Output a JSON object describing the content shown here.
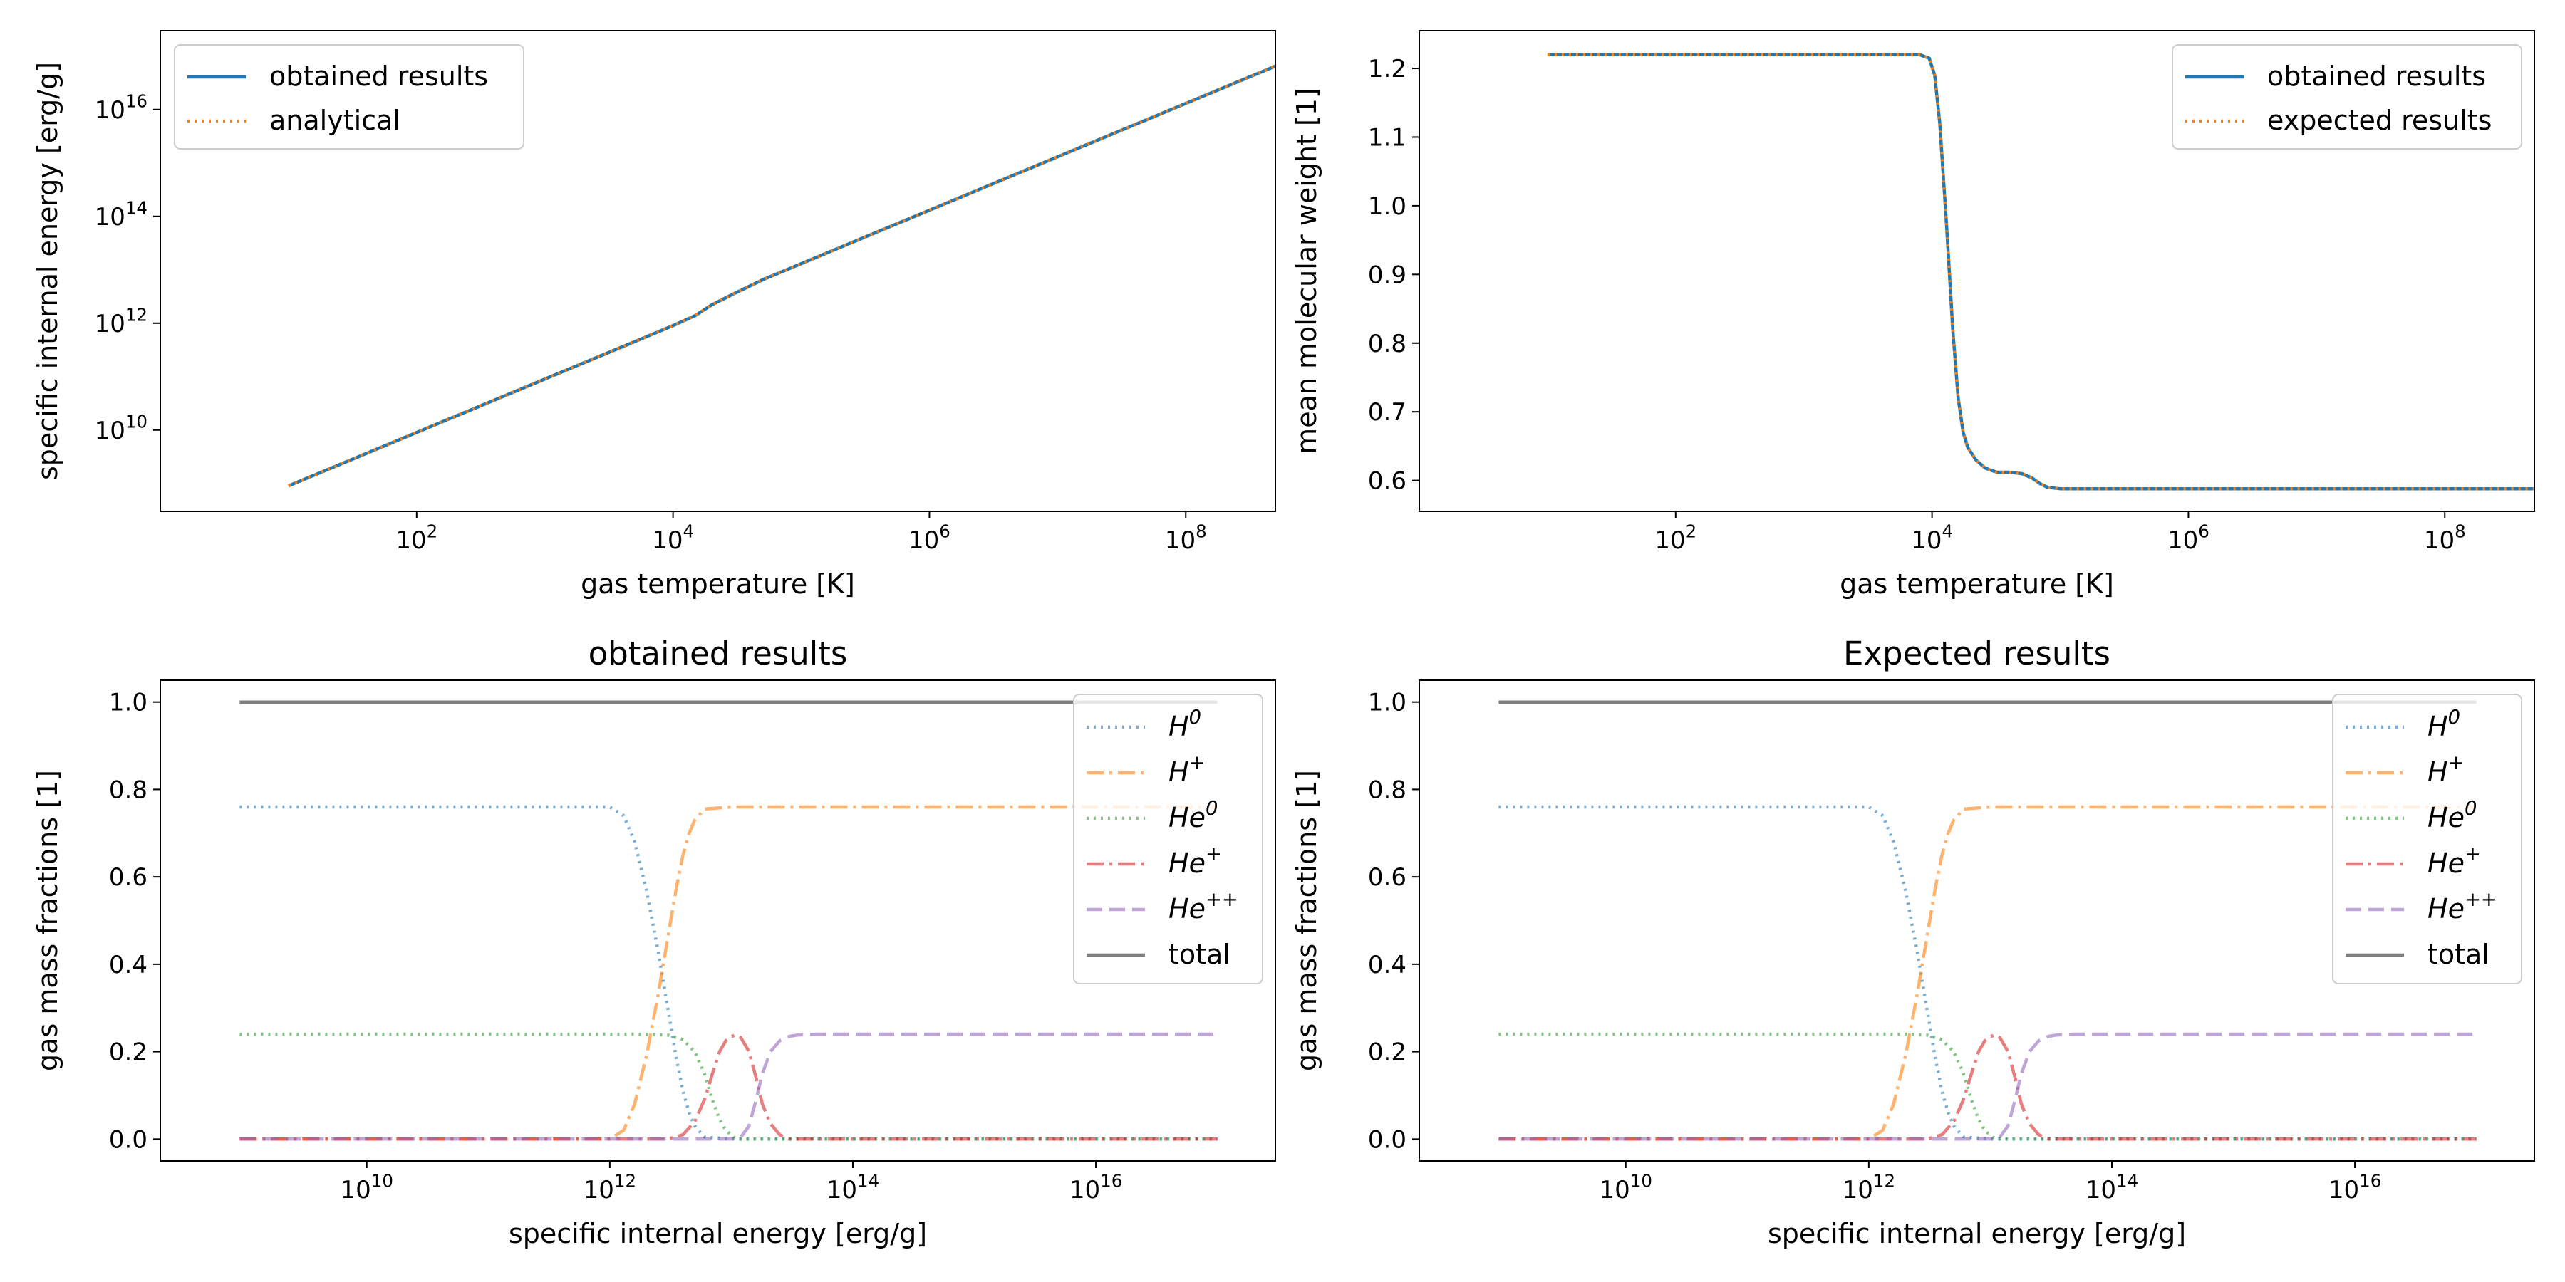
{
  "colors": {
    "blue": "#1f77b4",
    "orange": "#ff7f0e",
    "green": "#2ca02c",
    "red": "#d62728",
    "purple": "#9467bd",
    "gray": "#7f7f7f"
  },
  "chart_data": [
    {
      "type": "line",
      "title": "",
      "xlabel": "gas temperature [K]",
      "ylabel": "specific internal energy [erg/g]",
      "xscale": "log",
      "yscale": "log",
      "xlim": [
        1.0,
        500000000.0
      ],
      "ylim": [
        300000000.0,
        3e+17
      ],
      "xticks": [
        {
          "v": 100,
          "base": "10",
          "exp": "2"
        },
        {
          "v": 10000,
          "base": "10",
          "exp": "4"
        },
        {
          "v": 1000000,
          "base": "10",
          "exp": "6"
        },
        {
          "v": 100000000,
          "base": "10",
          "exp": "8"
        }
      ],
      "yticks": [
        {
          "v": 10000000000.0,
          "base": "10",
          "exp": "10"
        },
        {
          "v": 1000000000000.0,
          "base": "10",
          "exp": "12"
        },
        {
          "v": 100000000000000.0,
          "base": "10",
          "exp": "14"
        },
        {
          "v": 1e+16,
          "base": "10",
          "exp": "16"
        }
      ],
      "legend": "top-left",
      "series": [
        {
          "name": "obtained results",
          "color": "blue",
          "style": "solid",
          "x": [
            10,
            100,
            1000,
            5000,
            10000,
            15000,
            20000,
            30000,
            50000,
            100000,
            1000000,
            10000000,
            100000000,
            500000000
          ],
          "y": [
            900000000.0,
            9000000000.0,
            90000000000.0,
            450000000000.0,
            900000000000.0,
            1400000000000.0,
            2200000000000.0,
            3600000000000.0,
            6500000000000.0,
            13000000000000.0,
            130000000000000.0,
            1300000000000000.0,
            1.3e+16,
            6.5e+16
          ]
        },
        {
          "name": "analytical",
          "color": "orange",
          "style": "dotted",
          "x": [
            10,
            100,
            1000,
            5000,
            10000,
            15000,
            20000,
            30000,
            50000,
            100000,
            1000000,
            10000000,
            100000000,
            500000000
          ],
          "y": [
            900000000.0,
            9000000000.0,
            90000000000.0,
            450000000000.0,
            900000000000.0,
            1400000000000.0,
            2200000000000.0,
            3600000000000.0,
            6500000000000.0,
            13000000000000.0,
            130000000000000.0,
            1300000000000000.0,
            1.3e+16,
            6.5e+16
          ]
        }
      ]
    },
    {
      "type": "line",
      "title": "",
      "xlabel": "gas temperature [K]",
      "ylabel": "mean molecular weight [1]",
      "xscale": "log",
      "yscale": "linear",
      "xlim": [
        1.0,
        500000000.0
      ],
      "ylim": [
        0.555,
        1.255
      ],
      "xticks": [
        {
          "v": 100,
          "base": "10",
          "exp": "2"
        },
        {
          "v": 10000,
          "base": "10",
          "exp": "4"
        },
        {
          "v": 1000000,
          "base": "10",
          "exp": "6"
        },
        {
          "v": 100000000,
          "base": "10",
          "exp": "8"
        }
      ],
      "yticks": [
        {
          "v": 0.6,
          "label": "0.6"
        },
        {
          "v": 0.7,
          "label": "0.7"
        },
        {
          "v": 0.8,
          "label": "0.8"
        },
        {
          "v": 0.9,
          "label": "0.9"
        },
        {
          "v": 1.0,
          "label": "1.0"
        },
        {
          "v": 1.1,
          "label": "1.1"
        },
        {
          "v": 1.2,
          "label": "1.2"
        }
      ],
      "legend": "top-right",
      "series": [
        {
          "name": "obtained results",
          "color": "blue",
          "style": "solid",
          "x": [
            10,
            1000,
            8000,
            9500,
            10500,
            11500,
            13000,
            14500,
            16000,
            17500,
            19000,
            22000,
            26000,
            32000,
            40000,
            50000,
            60000,
            70000,
            80000,
            100000,
            200000,
            1000000,
            100000000,
            500000000
          ],
          "y": [
            1.22,
            1.22,
            1.22,
            1.215,
            1.19,
            1.12,
            0.97,
            0.82,
            0.72,
            0.67,
            0.648,
            0.63,
            0.618,
            0.612,
            0.612,
            0.61,
            0.604,
            0.595,
            0.59,
            0.588,
            0.588,
            0.588,
            0.588,
            0.588
          ]
        },
        {
          "name": "expected results",
          "color": "orange",
          "style": "dotted",
          "x": [
            10,
            1000,
            8000,
            9500,
            10500,
            11500,
            13000,
            14500,
            16000,
            17500,
            19000,
            22000,
            26000,
            32000,
            40000,
            50000,
            60000,
            70000,
            80000,
            100000,
            200000,
            1000000,
            100000000,
            500000000
          ],
          "y": [
            1.22,
            1.22,
            1.22,
            1.215,
            1.19,
            1.12,
            0.97,
            0.82,
            0.72,
            0.67,
            0.648,
            0.63,
            0.618,
            0.612,
            0.612,
            0.61,
            0.604,
            0.595,
            0.59,
            0.588,
            0.588,
            0.588,
            0.588,
            0.588
          ]
        }
      ]
    },
    {
      "type": "line",
      "title": "obtained results",
      "xlabel": "specific internal energy [erg/g]",
      "ylabel": "gas mass fractions [1]",
      "xscale": "log",
      "yscale": "linear",
      "xlim": [
        200000000.0,
        3e+17
      ],
      "ylim": [
        -0.05,
        1.05
      ],
      "xticks": [
        {
          "v": 10000000000.0,
          "base": "10",
          "exp": "10"
        },
        {
          "v": 1000000000000.0,
          "base": "10",
          "exp": "12"
        },
        {
          "v": 100000000000000.0,
          "base": "10",
          "exp": "14"
        },
        {
          "v": 1e+16,
          "base": "10",
          "exp": "16"
        }
      ],
      "yticks": [
        {
          "v": 0.0,
          "label": "0.0"
        },
        {
          "v": 0.2,
          "label": "0.2"
        },
        {
          "v": 0.4,
          "label": "0.4"
        },
        {
          "v": 0.6,
          "label": "0.6"
        },
        {
          "v": 0.8,
          "label": "0.8"
        },
        {
          "v": 1.0,
          "label": "1.0"
        }
      ],
      "legend": "top-right",
      "series": [
        {
          "name": "H",
          "sup": "0",
          "color": "blue",
          "style": "dotted",
          "alpha": 0.6,
          "x": [
            900000000.0,
            100000000000.0,
            1000000000000.0,
            1300000000000.0,
            1600000000000.0,
            2000000000000.0,
            2500000000000.0,
            3000000000000.0,
            3500000000000.0,
            4000000000000.0,
            4500000000000.0,
            5000000000000.0,
            6000000000000.0,
            10000000000000.0,
            1e+17
          ],
          "y": [
            0.76,
            0.76,
            0.76,
            0.74,
            0.68,
            0.57,
            0.43,
            0.3,
            0.19,
            0.11,
            0.06,
            0.03,
            0.005,
            0.0,
            0.0
          ]
        },
        {
          "name": "H",
          "sup": "+",
          "color": "orange",
          "style": "dashdot",
          "alpha": 0.6,
          "x": [
            900000000.0,
            100000000000.0,
            1000000000000.0,
            1300000000000.0,
            1600000000000.0,
            2000000000000.0,
            2500000000000.0,
            3000000000000.0,
            3500000000000.0,
            4000000000000.0,
            4500000000000.0,
            5000000000000.0,
            6000000000000.0,
            10000000000000.0,
            1e+17
          ],
          "y": [
            0.0,
            0.0,
            0.0,
            0.02,
            0.08,
            0.19,
            0.33,
            0.46,
            0.57,
            0.65,
            0.7,
            0.73,
            0.755,
            0.76,
            0.76
          ]
        },
        {
          "name": "He",
          "sup": "0",
          "color": "green",
          "style": "dotted",
          "alpha": 0.6,
          "x": [
            900000000.0,
            100000000000.0,
            1000000000000.0,
            2000000000000.0,
            3000000000000.0,
            4000000000000.0,
            5000000000000.0,
            6000000000000.0,
            7000000000000.0,
            8000000000000.0,
            9000000000000.0,
            11000000000000.0,
            1e+17
          ],
          "y": [
            0.24,
            0.24,
            0.24,
            0.24,
            0.238,
            0.228,
            0.2,
            0.15,
            0.09,
            0.045,
            0.02,
            0.0,
            0.0
          ]
        },
        {
          "name": "He",
          "sup": "+",
          "color": "red",
          "style": "dashdot",
          "alpha": 0.6,
          "x": [
            900000000.0,
            100000000000.0,
            3000000000000.0,
            4000000000000.0,
            5000000000000.0,
            6000000000000.0,
            7000000000000.0,
            8000000000000.0,
            9000000000000.0,
            10000000000000.0,
            11000000000000.0,
            12000000000000.0,
            14000000000000.0,
            16000000000000.0,
            18000000000000.0,
            21000000000000.0,
            25000000000000.0,
            30000000000000.0,
            1e+17
          ],
          "y": [
            0.0,
            0.0,
            0.0,
            0.01,
            0.04,
            0.09,
            0.15,
            0.2,
            0.225,
            0.235,
            0.238,
            0.232,
            0.2,
            0.14,
            0.08,
            0.035,
            0.01,
            0.0,
            0.0
          ]
        },
        {
          "name": "He",
          "sup": "++",
          "color": "purple",
          "style": "dashed",
          "alpha": 0.6,
          "x": [
            900000000.0,
            100000000000.0,
            10000000000000.0,
            12000000000000.0,
            14000000000000.0,
            16000000000000.0,
            18000000000000.0,
            21000000000000.0,
            25000000000000.0,
            30000000000000.0,
            35000000000000.0,
            50000000000000.0,
            1e+17
          ],
          "y": [
            0.0,
            0.0,
            0.0,
            0.005,
            0.03,
            0.09,
            0.15,
            0.2,
            0.225,
            0.235,
            0.238,
            0.24,
            0.24
          ]
        },
        {
          "name": "total",
          "color": "gray",
          "style": "solid",
          "alpha": 1.0,
          "x": [
            900000000.0,
            1e+17
          ],
          "y": [
            1.0,
            1.0
          ]
        }
      ]
    },
    {
      "type": "line",
      "title": "Expected results",
      "xlabel": "specific internal energy [erg/g]",
      "ylabel": "gas mass fractions [1]",
      "xscale": "log",
      "yscale": "linear",
      "xlim": [
        200000000.0,
        3e+17
      ],
      "ylim": [
        -0.05,
        1.05
      ],
      "xticks": [
        {
          "v": 10000000000.0,
          "base": "10",
          "exp": "10"
        },
        {
          "v": 1000000000000.0,
          "base": "10",
          "exp": "12"
        },
        {
          "v": 100000000000000.0,
          "base": "10",
          "exp": "14"
        },
        {
          "v": 1e+16,
          "base": "10",
          "exp": "16"
        }
      ],
      "yticks": [
        {
          "v": 0.0,
          "label": "0.0"
        },
        {
          "v": 0.2,
          "label": "0.2"
        },
        {
          "v": 0.4,
          "label": "0.4"
        },
        {
          "v": 0.6,
          "label": "0.6"
        },
        {
          "v": 0.8,
          "label": "0.8"
        },
        {
          "v": 1.0,
          "label": "1.0"
        }
      ],
      "legend": "top-right",
      "series": [
        {
          "name": "H",
          "sup": "0",
          "color": "blue",
          "style": "dotted",
          "alpha": 0.6,
          "x": [
            900000000.0,
            100000000000.0,
            1000000000000.0,
            1300000000000.0,
            1600000000000.0,
            2000000000000.0,
            2500000000000.0,
            3000000000000.0,
            3500000000000.0,
            4000000000000.0,
            4500000000000.0,
            5000000000000.0,
            6000000000000.0,
            10000000000000.0,
            1e+17
          ],
          "y": [
            0.76,
            0.76,
            0.76,
            0.74,
            0.68,
            0.57,
            0.43,
            0.3,
            0.19,
            0.11,
            0.06,
            0.03,
            0.005,
            0.0,
            0.0
          ]
        },
        {
          "name": "H",
          "sup": "+",
          "color": "orange",
          "style": "dashdot",
          "alpha": 0.6,
          "x": [
            900000000.0,
            100000000000.0,
            1000000000000.0,
            1300000000000.0,
            1600000000000.0,
            2000000000000.0,
            2500000000000.0,
            3000000000000.0,
            3500000000000.0,
            4000000000000.0,
            4500000000000.0,
            5000000000000.0,
            6000000000000.0,
            10000000000000.0,
            1e+17
          ],
          "y": [
            0.0,
            0.0,
            0.0,
            0.02,
            0.08,
            0.19,
            0.33,
            0.46,
            0.57,
            0.65,
            0.7,
            0.73,
            0.755,
            0.76,
            0.76
          ]
        },
        {
          "name": "He",
          "sup": "0",
          "color": "green",
          "style": "dotted",
          "alpha": 0.6,
          "x": [
            900000000.0,
            100000000000.0,
            1000000000000.0,
            2000000000000.0,
            3000000000000.0,
            4000000000000.0,
            5000000000000.0,
            6000000000000.0,
            7000000000000.0,
            8000000000000.0,
            9000000000000.0,
            11000000000000.0,
            1e+17
          ],
          "y": [
            0.24,
            0.24,
            0.24,
            0.24,
            0.238,
            0.228,
            0.2,
            0.15,
            0.09,
            0.045,
            0.02,
            0.0,
            0.0
          ]
        },
        {
          "name": "He",
          "sup": "+",
          "color": "red",
          "style": "dashdot",
          "alpha": 0.6,
          "x": [
            900000000.0,
            100000000000.0,
            3000000000000.0,
            4000000000000.0,
            5000000000000.0,
            6000000000000.0,
            7000000000000.0,
            8000000000000.0,
            9000000000000.0,
            10000000000000.0,
            11000000000000.0,
            12000000000000.0,
            14000000000000.0,
            16000000000000.0,
            18000000000000.0,
            21000000000000.0,
            25000000000000.0,
            30000000000000.0,
            1e+17
          ],
          "y": [
            0.0,
            0.0,
            0.0,
            0.01,
            0.04,
            0.09,
            0.15,
            0.2,
            0.225,
            0.235,
            0.238,
            0.232,
            0.2,
            0.14,
            0.08,
            0.035,
            0.01,
            0.0,
            0.0
          ]
        },
        {
          "name": "He",
          "sup": "++",
          "color": "purple",
          "style": "dashed",
          "alpha": 0.6,
          "x": [
            900000000.0,
            100000000000.0,
            10000000000000.0,
            12000000000000.0,
            14000000000000.0,
            16000000000000.0,
            18000000000000.0,
            21000000000000.0,
            25000000000000.0,
            30000000000000.0,
            35000000000000.0,
            50000000000000.0,
            1e+17
          ],
          "y": [
            0.0,
            0.0,
            0.0,
            0.005,
            0.03,
            0.09,
            0.15,
            0.2,
            0.225,
            0.235,
            0.238,
            0.24,
            0.24
          ]
        },
        {
          "name": "total",
          "color": "gray",
          "style": "solid",
          "alpha": 1.0,
          "x": [
            900000000.0,
            1e+17
          ],
          "y": [
            1.0,
            1.0
          ]
        }
      ]
    }
  ]
}
